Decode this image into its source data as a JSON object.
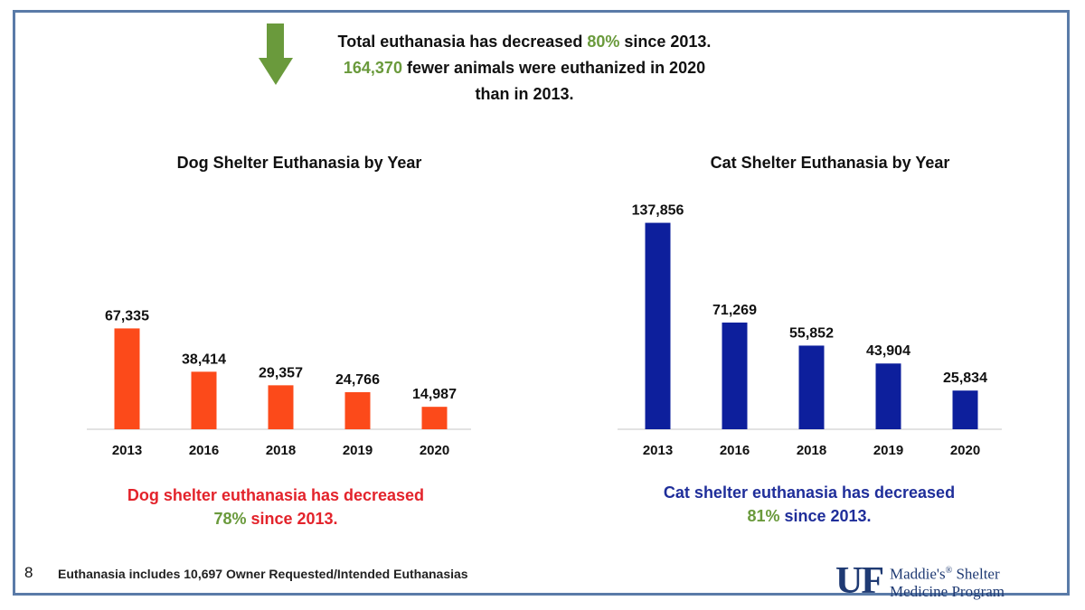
{
  "headline": {
    "line1_pre": "Total euthanasia has decreased ",
    "line1_pct": "80%",
    "line1_post": " since 2013.",
    "line2_num": "164,370",
    "line2_post": " fewer animals were euthanized in 2020",
    "line3": "than in 2013."
  },
  "colors": {
    "dog_bar": "#fc4a1a",
    "cat_bar": "#0d1f9c",
    "highlight_green": "#6a9a3c",
    "dog_summary": "#e3232b",
    "cat_summary": "#1f2e9a",
    "frame": "#5a7ba8"
  },
  "chart_data": [
    {
      "type": "bar",
      "title": "Dog Shelter Euthanasia by Year",
      "categories": [
        "2013",
        "2016",
        "2018",
        "2019",
        "2020"
      ],
      "values": [
        67335,
        38414,
        29357,
        24766,
        14987
      ],
      "value_labels": [
        "67,335",
        "38,414",
        "29,357",
        "24,766",
        "14,987"
      ],
      "ylim": [
        0,
        140000
      ],
      "xlabel": "",
      "ylabel": "",
      "grid": false,
      "color": "#fc4a1a"
    },
    {
      "type": "bar",
      "title": "Cat Shelter Euthanasia by Year",
      "categories": [
        "2013",
        "2016",
        "2018",
        "2019",
        "2020"
      ],
      "values": [
        137856,
        71269,
        55852,
        43904,
        25834
      ],
      "value_labels": [
        "137,856",
        "71,269",
        "55,852",
        "43,904",
        "25,834"
      ],
      "ylim": [
        0,
        140000
      ],
      "xlabel": "",
      "ylabel": "",
      "grid": false,
      "color": "#0d1f9c"
    }
  ],
  "dog_summary": {
    "line1": "Dog shelter euthanasia has decreased",
    "pct": "78%",
    "rest": " since 2013."
  },
  "cat_summary": {
    "line1": "Cat shelter euthanasia has decreased",
    "pct": "81%",
    "rest": " since 2013."
  },
  "footer": {
    "page_number": "8",
    "note": "Euthanasia includes 10,697 Owner Requested/Intended Euthanasias",
    "logo_uf": "UF",
    "logo_line1": "Maddie's",
    "logo_reg": "®",
    "logo_line1b": " Shelter",
    "logo_line2": "Medicine Program"
  },
  "icons": {
    "down_arrow": "down-arrow-icon"
  }
}
